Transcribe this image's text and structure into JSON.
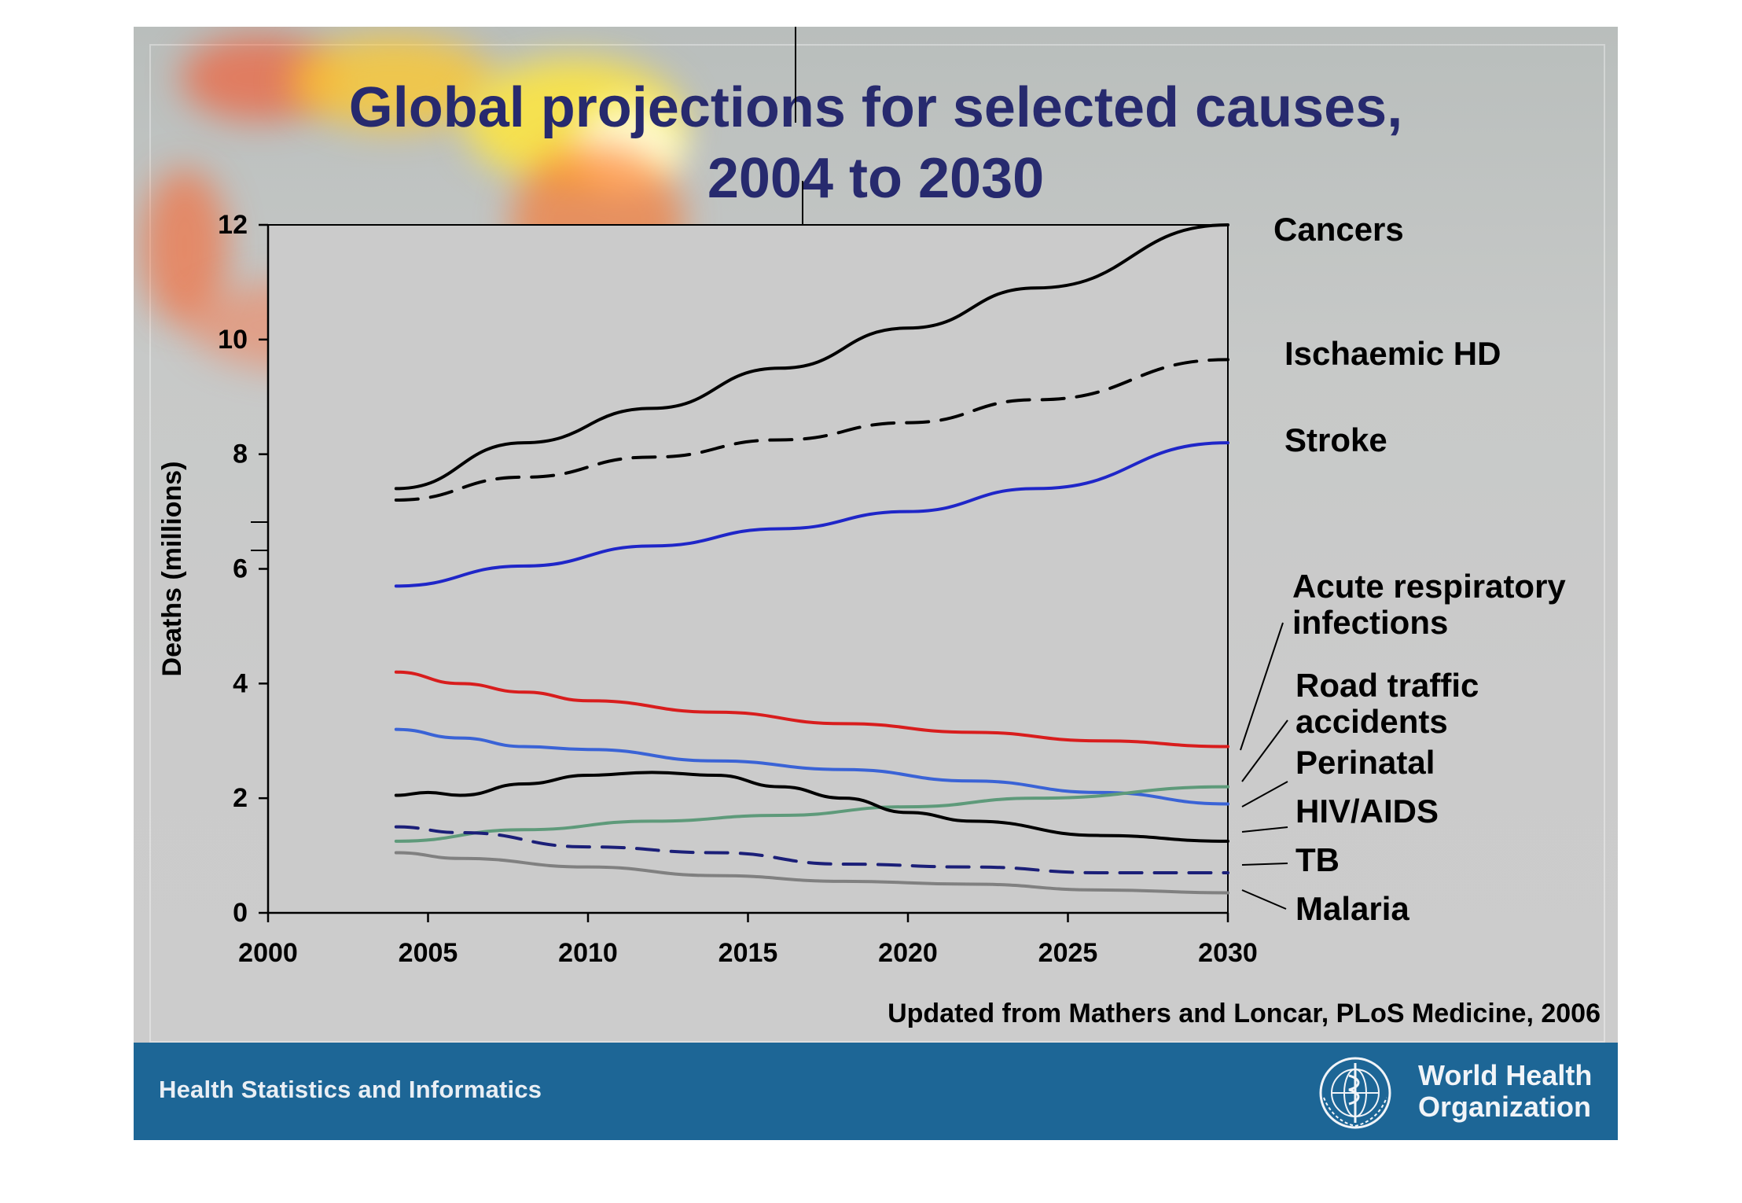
{
  "title_line1": "Global projections for selected causes,",
  "title_line2": "2004 to 2030",
  "source": "Updated from Mathers and Loncar, PLoS Medicine, 2006",
  "footer": {
    "left_text": "Health Statistics and Informatics",
    "org_line1": "World Health",
    "org_line2": "Organization",
    "emblem_icon": "who-emblem-icon"
  },
  "colors": {
    "title": "#272a6e",
    "footer_bg": "#1d6696",
    "cancers": "#000000",
    "ischaemic": "#000000",
    "stroke": "#1f26c8",
    "acute_resp": "#d81d1d",
    "road": "#3a63d6",
    "perinatal": "#5e9a7a",
    "hiv": "#000000",
    "tb": "#1b1f78",
    "malaria": "#808080"
  },
  "chart_data": {
    "type": "line",
    "title": "Global projections for selected causes, 2004 to 2030",
    "xlabel": "",
    "ylabel": "Deaths (millions)",
    "xlim": [
      2000,
      2030
    ],
    "ylim": [
      0,
      12
    ],
    "x_ticks": [
      2000,
      2005,
      2010,
      2015,
      2020,
      2025,
      2030
    ],
    "y_ticks": [
      0,
      2,
      4,
      6,
      8,
      10,
      12
    ],
    "grid": false,
    "legend": "right",
    "series": [
      {
        "name": "Cancers",
        "key": "cancers",
        "dashed": false,
        "x": [
          2004,
          2008,
          2012,
          2016,
          2020,
          2024,
          2030
        ],
        "y": [
          7.4,
          8.2,
          8.8,
          9.5,
          10.2,
          10.9,
          12.0
        ]
      },
      {
        "name": "Ischaemic HD",
        "key": "ischaemic",
        "dashed": true,
        "x": [
          2004,
          2008,
          2012,
          2016,
          2020,
          2024,
          2030
        ],
        "y": [
          7.2,
          7.6,
          7.95,
          8.25,
          8.55,
          8.95,
          9.65
        ]
      },
      {
        "name": "Stroke",
        "key": "stroke",
        "dashed": false,
        "x": [
          2004,
          2008,
          2012,
          2016,
          2020,
          2024,
          2030
        ],
        "y": [
          5.7,
          6.05,
          6.4,
          6.7,
          7.0,
          7.4,
          8.2
        ]
      },
      {
        "name": "Acute respiratory infections",
        "key": "acute_resp",
        "dashed": false,
        "x": [
          2004,
          2006,
          2008,
          2010,
          2014,
          2018,
          2022,
          2026,
          2030
        ],
        "y": [
          4.2,
          4.0,
          3.85,
          3.7,
          3.5,
          3.3,
          3.15,
          3.0,
          2.9
        ]
      },
      {
        "name": "Road traffic accidents",
        "key": "road",
        "dashed": false,
        "x": [
          2004,
          2006,
          2008,
          2010,
          2014,
          2018,
          2022,
          2026,
          2030
        ],
        "y": [
          3.2,
          3.05,
          2.9,
          2.85,
          2.65,
          2.5,
          2.3,
          2.1,
          1.9
        ]
      },
      {
        "name": "Perinatal",
        "key": "perinatal",
        "dashed": false,
        "x": [
          2004,
          2008,
          2012,
          2016,
          2020,
          2024,
          2030
        ],
        "y": [
          1.25,
          1.45,
          1.6,
          1.7,
          1.85,
          2.0,
          2.2
        ]
      },
      {
        "name": "HIV/AIDS",
        "key": "hiv",
        "dashed": false,
        "x": [
          2004,
          2005,
          2006,
          2008,
          2010,
          2012,
          2014,
          2016,
          2018,
          2020,
          2022,
          2026,
          2030
        ],
        "y": [
          2.05,
          2.1,
          2.05,
          2.25,
          2.4,
          2.45,
          2.4,
          2.2,
          2.0,
          1.75,
          1.6,
          1.35,
          1.25
        ]
      },
      {
        "name": "TB",
        "key": "tb",
        "dashed": true,
        "x": [
          2004,
          2006,
          2010,
          2014,
          2018,
          2022,
          2026,
          2030
        ],
        "y": [
          1.5,
          1.4,
          1.15,
          1.05,
          0.85,
          0.8,
          0.7,
          0.7
        ]
      },
      {
        "name": "Malaria",
        "key": "malaria",
        "dashed": false,
        "x": [
          2004,
          2006,
          2010,
          2014,
          2018,
          2022,
          2026,
          2030
        ],
        "y": [
          1.05,
          0.95,
          0.8,
          0.65,
          0.55,
          0.5,
          0.4,
          0.35
        ]
      }
    ]
  }
}
